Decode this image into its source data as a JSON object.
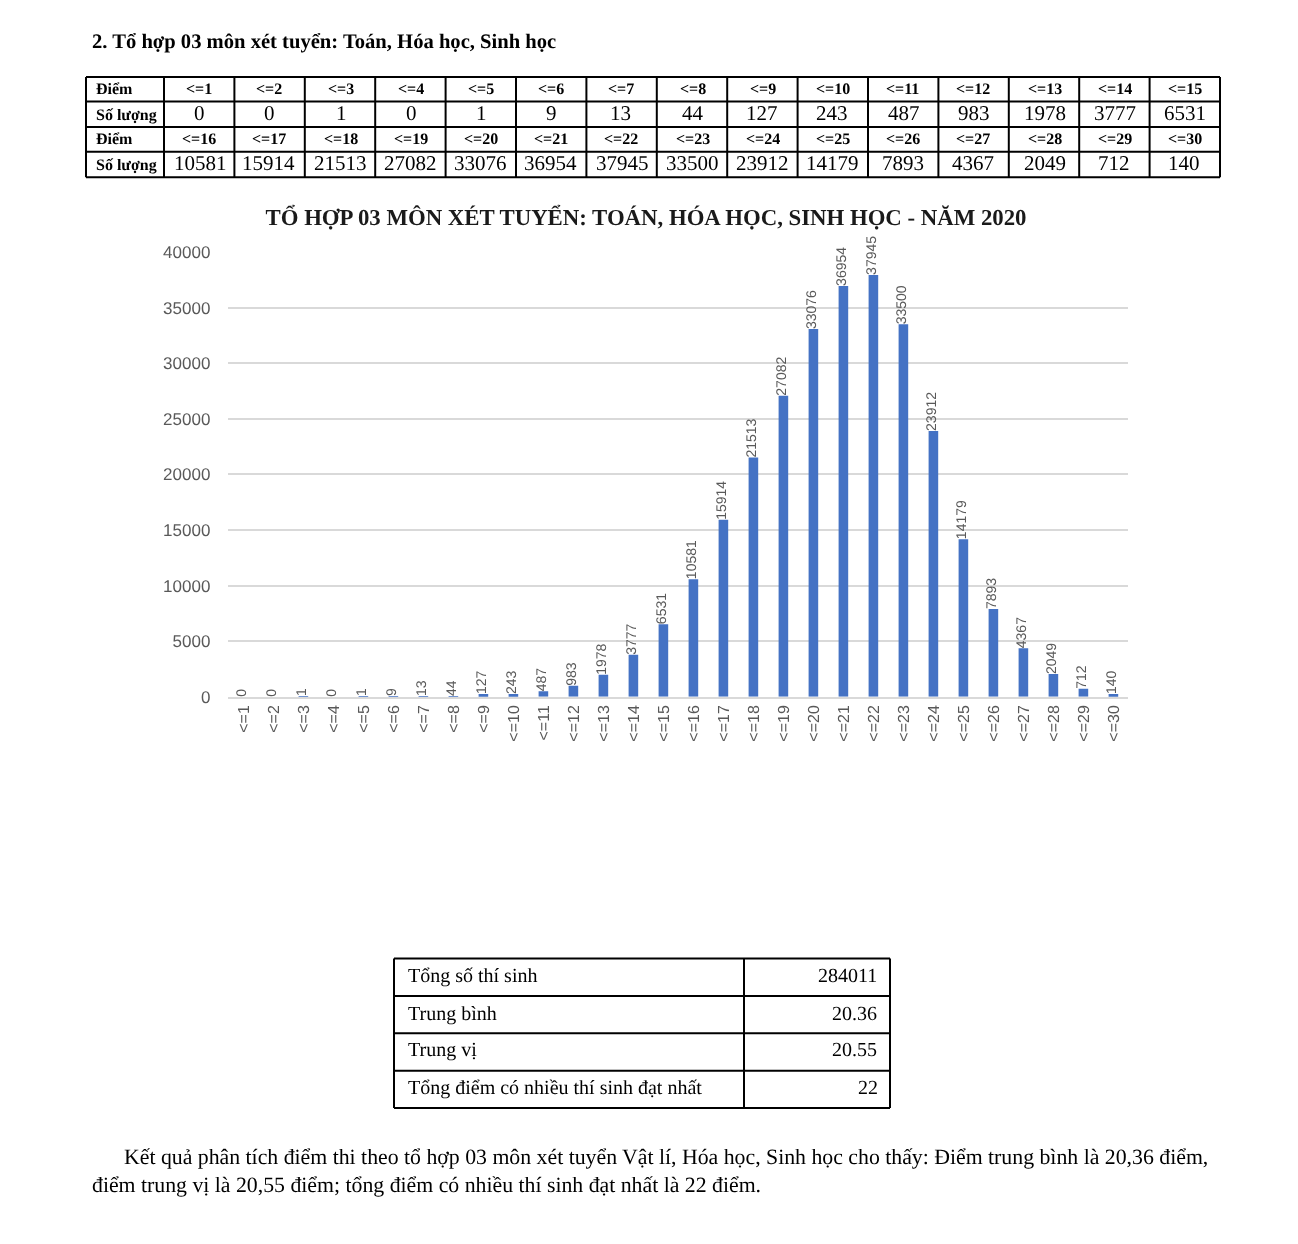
{
  "chart_data": {
    "type": "bar",
    "title": "TỔ HỢP 03 MÔN XÉT TUYỂN: TOÁN, HÓA HỌC, SINH HỌC - NĂM 2020",
    "categories": [
      "<=1",
      "<=2",
      "<=3",
      "<=4",
      "<=5",
      "<=6",
      "<=7",
      "<=8",
      "<=9",
      "<=10",
      "<=11",
      "<=12",
      "<=13",
      "<=14",
      "<=15",
      "<=16",
      "<=17",
      "<=18",
      "<=19",
      "<=20",
      "<=21",
      "<=22",
      "<=23",
      "<=24",
      "<=25",
      "<=26",
      "<=27",
      "<=28",
      "<=29",
      "<=30"
    ],
    "values": [
      0,
      0,
      1,
      0,
      1,
      9,
      13,
      44,
      127,
      243,
      487,
      983,
      1978,
      3777,
      6531,
      10581,
      15914,
      21513,
      27082,
      33076,
      36954,
      37945,
      33500,
      23912,
      14179,
      7893,
      4367,
      2049,
      712,
      140
    ],
    "color": "#4472c4",
    "ylim": [
      0,
      40000
    ],
    "yticks": [
      0,
      5000,
      10000,
      15000,
      20000,
      25000,
      30000,
      35000,
      40000
    ],
    "grid": "y",
    "data_labels": true,
    "annotations": [
      "2. Tổ hợp 03 môn xét tuyển: Toán, Hóa học, Sinh học",
      "Điểm",
      "Số lượng",
      "0",
      "0",
      "1",
      "0",
      "1",
      "9",
      "13",
      "44",
      "127",
      "243",
      "487",
      "983",
      "1978",
      "3777",
      "6531",
      "10581",
      "15914",
      "21513",
      "27082",
      "33076",
      "36954",
      "37945",
      "33500",
      "23912",
      "14179",
      "7893",
      "4367",
      "2049",
      "712",
      "140",
      "Tổng số thí sinh",
      "284011",
      "Trung bình",
      "20.36",
      "Trung vị",
      "20.55",
      "Tổng điểm có nhiều thí sinh đạt nhất",
      "22",
      "Kết quả phân tích điểm thi theo tổ hợp 03 môn xét tuyển Vật lí, Hóa học, Sinh học cho thấy: Điểm trung bình là 20,36 điểm, điểm trung vị là 20,55 điểm; tổng điểm có nhiều thí sinh đạt nhất là 22 điểm."
    ]
  }
}
